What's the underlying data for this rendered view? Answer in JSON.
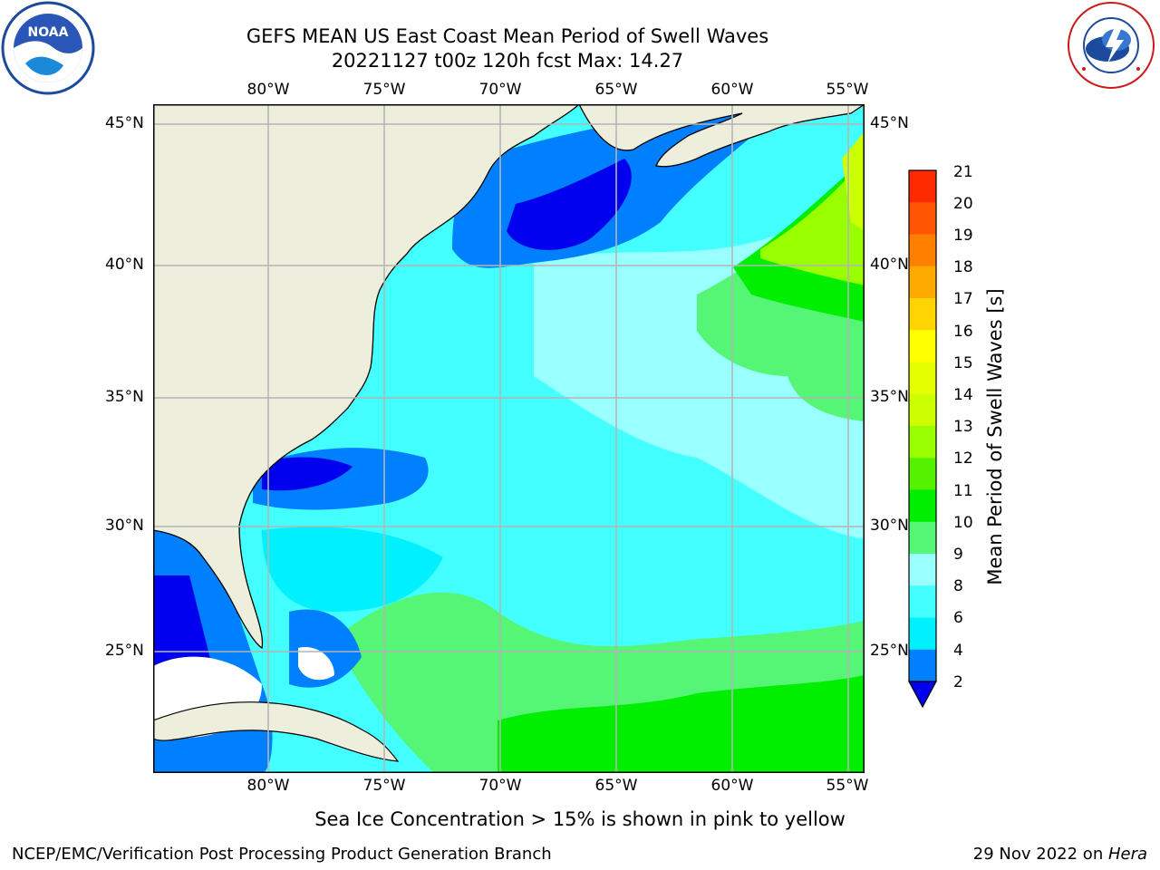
{
  "title": {
    "line1": "GEFS MEAN US East Coast Mean Period of Swell Waves",
    "line2": "20221127 t00z 120h fcst   Max: 14.27"
  },
  "longitude_labels": [
    "80°W",
    "75°W",
    "70°W",
    "65°W",
    "60°W",
    "55°W"
  ],
  "latitude_labels": [
    "45°N",
    "40°N",
    "35°N",
    "30°N",
    "25°N"
  ],
  "colorbar": {
    "label": "Mean Period of Swell Waves [s]",
    "ticks": [
      "21",
      "20",
      "19",
      "18",
      "17",
      "16",
      "15",
      "14",
      "13",
      "12",
      "11",
      "10",
      "9",
      "8",
      "6",
      "4",
      "2"
    ],
    "colors": [
      "#ff0000",
      "#ff2a00",
      "#ff5500",
      "#ff8000",
      "#ffaa00",
      "#ffd400",
      "#ffff00",
      "#e6ff00",
      "#ccff00",
      "#99ff00",
      "#55f200",
      "#00ee00",
      "#55f575",
      "#99ffff",
      "#44ffff",
      "#00f0ff",
      "#0080ff",
      "#0000ee"
    ]
  },
  "subtitle": "Sea Ice Concentration > 15% is shown in pink to yellow",
  "footer": {
    "left": "NCEP/EMC/Verification Post Processing Product Generation Branch",
    "right_date": "29 Nov 2022 on ",
    "right_machine": "Hera"
  },
  "logos": {
    "noaa": "NOAA",
    "noaa_ring": "NATIONAL OCEANIC AND ATMOSPHERIC ADMINISTRATION · U.S. DEPARTMENT OF COMMERCE",
    "nws": "NATIONAL WEATHER SERVICE"
  },
  "colors": {
    "land": "#eeeedc",
    "grid": "#b4b4b4",
    "frame": "#000000"
  }
}
